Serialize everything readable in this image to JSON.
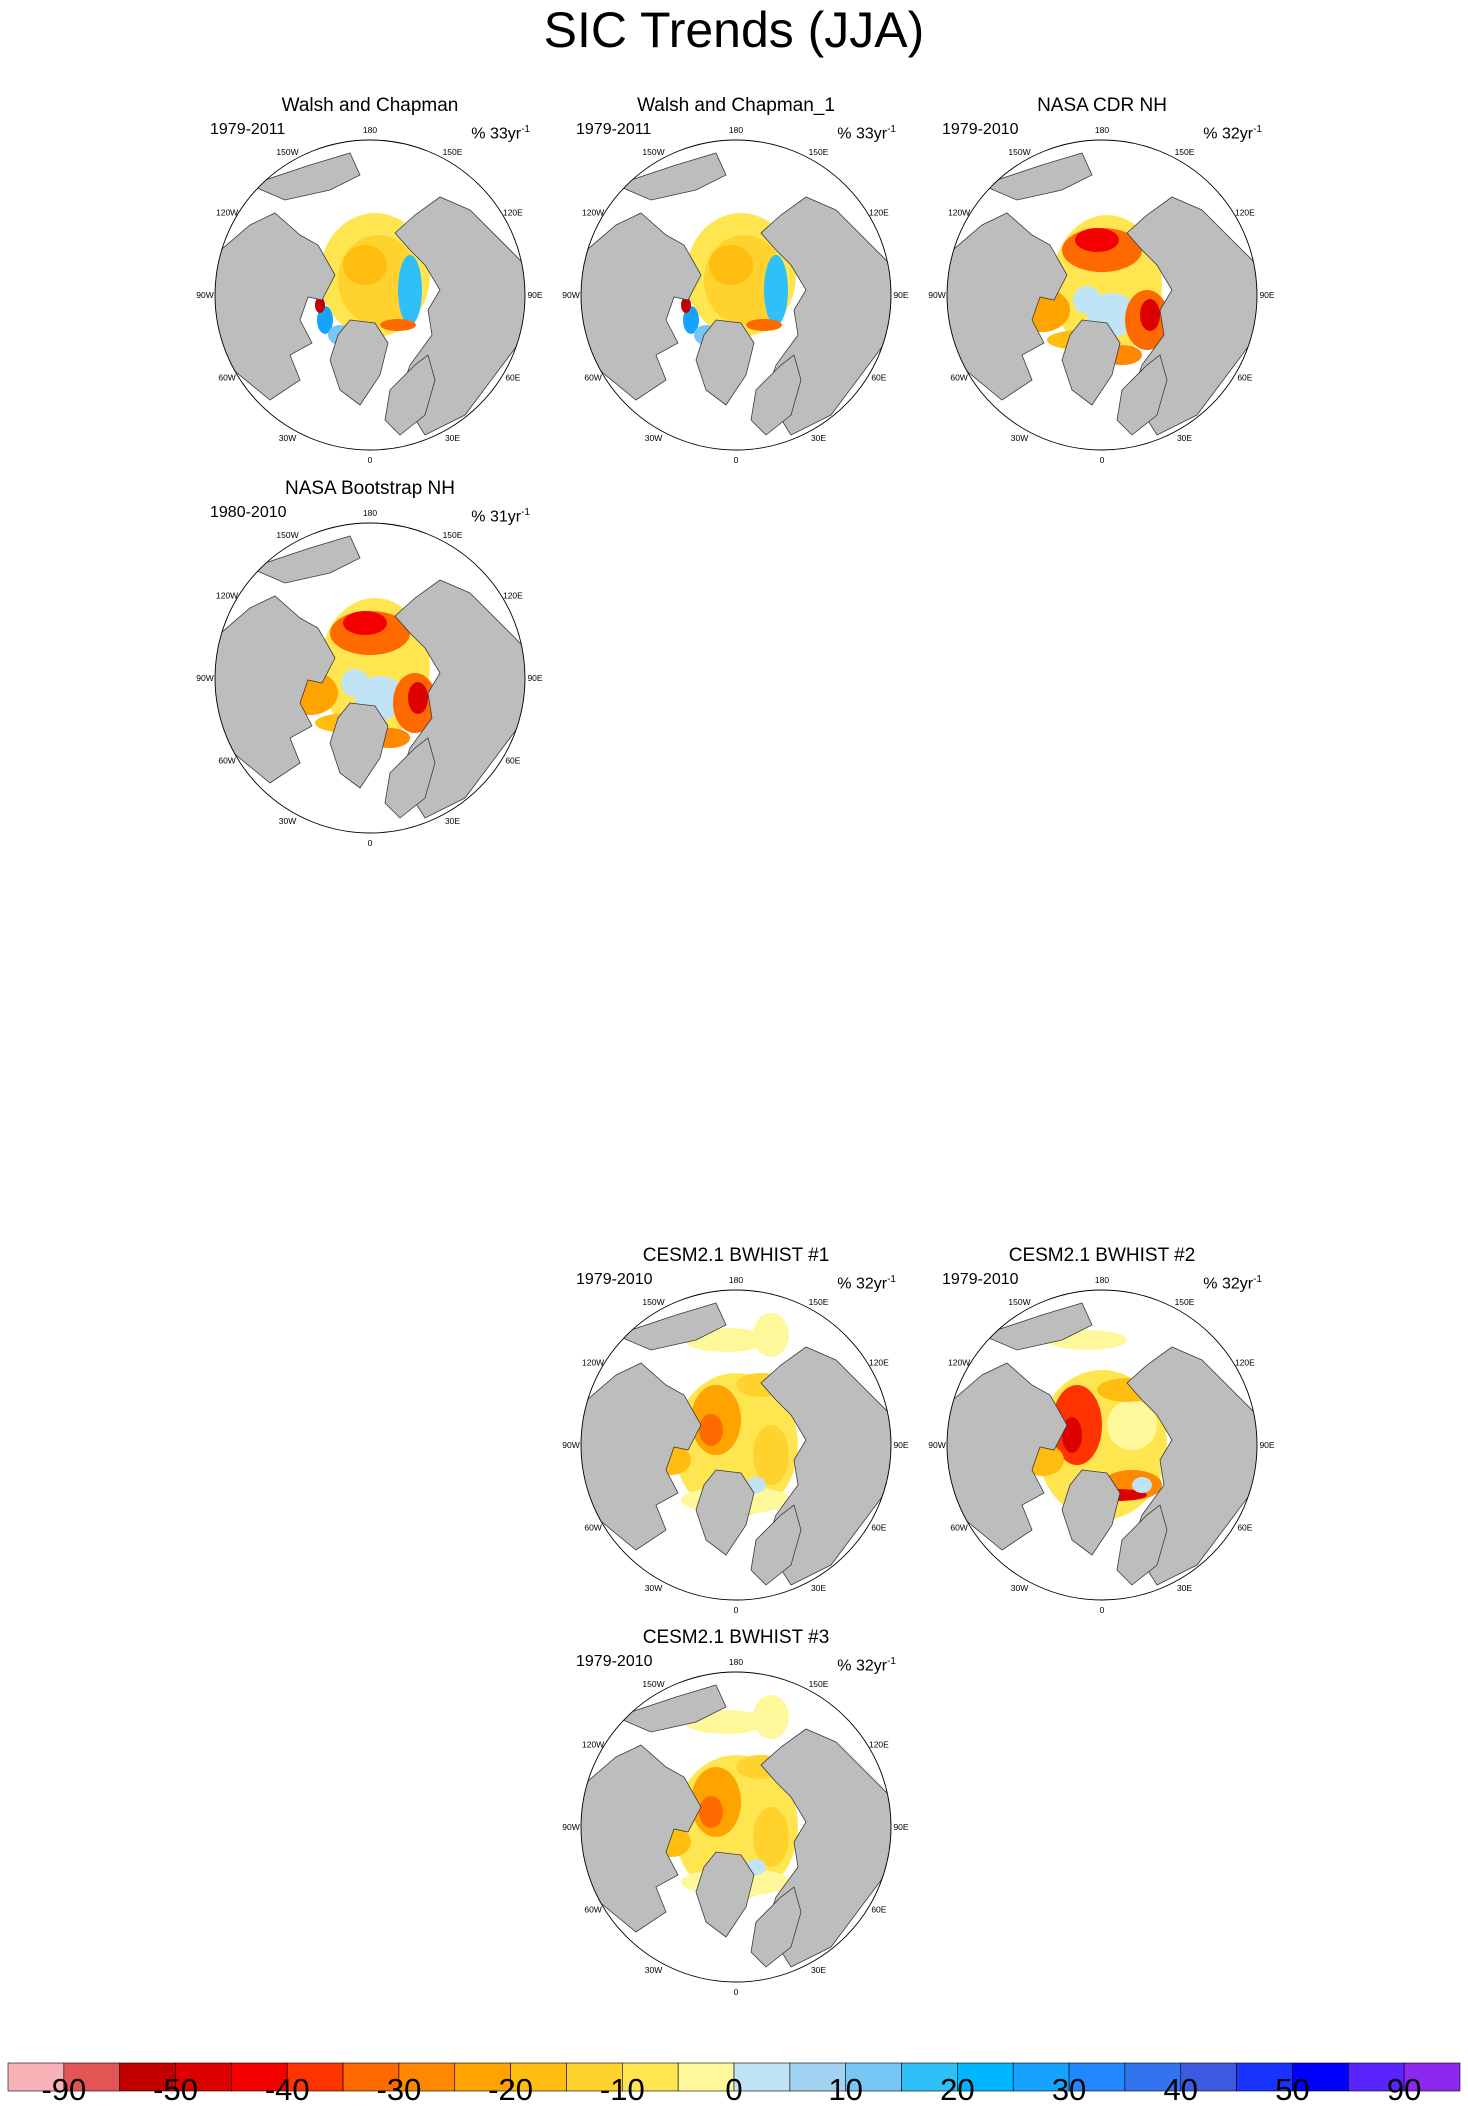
{
  "figure": {
    "title": "SIC Trends (JJA)"
  },
  "panels": [
    {
      "title": "Walsh and Chapman",
      "period": "1979-2011",
      "units_value": "% 33yr",
      "units_exp": "-1",
      "pattern": "obs-wc"
    },
    {
      "title": "Walsh and Chapman_1",
      "period": "1979-2011",
      "units_value": "% 33yr",
      "units_exp": "-1",
      "pattern": "obs-wc"
    },
    {
      "title": "NASA CDR NH",
      "period": "1979-2010",
      "units_value": "% 32yr",
      "units_exp": "-1",
      "pattern": "obs-nasa"
    },
    {
      "title": "NASA Bootstrap NH",
      "period": "1980-2010",
      "units_value": "% 31yr",
      "units_exp": "-1",
      "pattern": "obs-nasa"
    },
    {
      "title": "CESM2.1 BWHIST #1",
      "period": "1979-2010",
      "units_value": "% 32yr",
      "units_exp": "-1",
      "pattern": "model"
    },
    {
      "title": "CESM2.1 BWHIST #2",
      "period": "1979-2010",
      "units_value": "% 32yr",
      "units_exp": "-1",
      "pattern": "model-strong"
    },
    {
      "title": "CESM2.1 BWHIST #3",
      "period": "1979-2010",
      "units_value": "% 32yr",
      "units_exp": "-1",
      "pattern": "model"
    }
  ],
  "longitude_labels": [
    "180",
    "150E",
    "120E",
    "90E",
    "60E",
    "30E",
    "0",
    "30W",
    "60W",
    "90W",
    "120W",
    "150W"
  ],
  "colorbar": {
    "colors": [
      "#f9b3b8",
      "#e35555",
      "#c30000",
      "#dc0000",
      "#f50000",
      "#ff3300",
      "#ff6a00",
      "#ff8800",
      "#ffa300",
      "#ffbd0f",
      "#ffd22d",
      "#ffe650",
      "#fff89a",
      "#c0e3f6",
      "#a0d2f2",
      "#76c7f5",
      "#2ec0f7",
      "#00b6ff",
      "#15a3ff",
      "#2288ff",
      "#3273f0",
      "#3c5be0",
      "#1a34ff",
      "#0000ff",
      "#5a24ff",
      "#8c28f0"
    ],
    "tick_labels": [
      "-90",
      "-50",
      "-40",
      "-30",
      "-20",
      "-10",
      "0",
      "10",
      "20",
      "30",
      "40",
      "50",
      "90"
    ],
    "tick_values": [
      -90,
      -50,
      -40,
      -30,
      -20,
      -10,
      0,
      10,
      20,
      30,
      40,
      50,
      90
    ]
  }
}
